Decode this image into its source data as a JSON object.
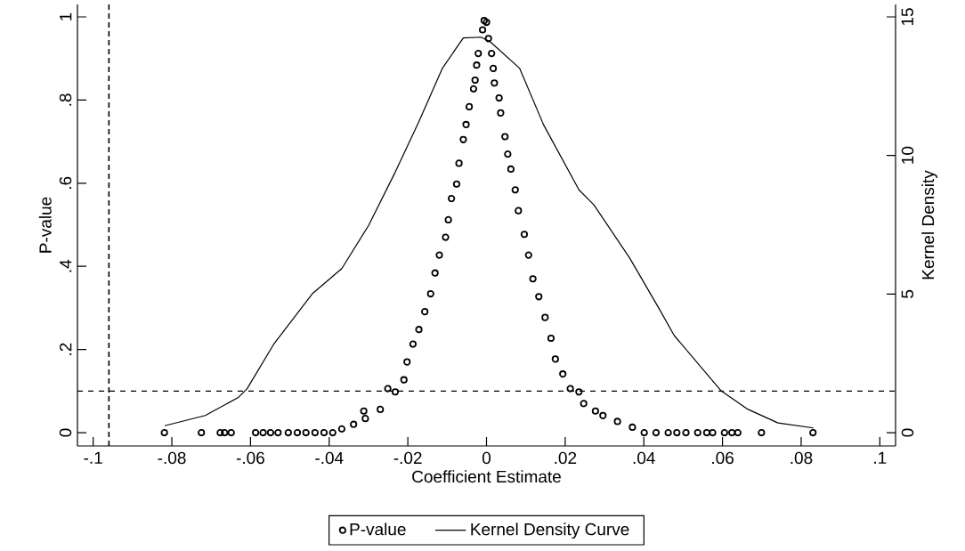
{
  "chart_data": {
    "type": "scatter",
    "xlabel": "Coefficient Estimate",
    "ylabel": "P-value",
    "y2label": "Kernel Density",
    "series": [
      {
        "name": "P-value",
        "marker": "circle",
        "color": "#000000",
        "x": [
          -0.0819,
          -0.0725,
          -0.0677,
          -0.0666,
          -0.0649,
          -0.0587,
          -0.0568,
          -0.0549,
          -0.053,
          -0.0504,
          -0.0481,
          -0.0459,
          -0.0436,
          -0.0413,
          -0.0391,
          -0.0368,
          -0.0338,
          -0.0308,
          -0.0312,
          -0.027,
          -0.0251,
          -0.0232,
          -0.021,
          -0.0202,
          -0.0187,
          -0.0172,
          -0.0157,
          -0.0142,
          -0.0131,
          -0.012,
          -0.0104,
          -0.0097,
          -0.0089,
          -0.0076,
          -0.007,
          -0.0059,
          -0.0052,
          -0.0044,
          -0.0033,
          -0.0029,
          -0.0025,
          -0.0021,
          -0.001,
          -0.0006,
          0.0,
          0.0005,
          0.0013,
          0.0017,
          0.002,
          0.0032,
          0.0036,
          0.0047,
          0.0054,
          0.0062,
          0.0073,
          0.0081,
          0.0096,
          0.0107,
          0.0118,
          0.0133,
          0.0149,
          0.0164,
          0.0175,
          0.0194,
          0.0213,
          0.0235,
          0.0247,
          0.0277,
          0.0296,
          0.0333,
          0.0371,
          0.0401,
          0.0431,
          0.0462,
          0.0484,
          0.0507,
          0.0537,
          0.056,
          0.0575,
          0.0605,
          0.0624,
          0.0639,
          0.0699,
          0.083
        ],
        "values": [
          0,
          0,
          0,
          0,
          0,
          0,
          0,
          0,
          0,
          0,
          0,
          0,
          0,
          0,
          0,
          0.009,
          0.02,
          0.034,
          0.052,
          0.056,
          0.106,
          0.098,
          0.127,
          0.17,
          0.213,
          0.248,
          0.291,
          0.334,
          0.384,
          0.427,
          0.47,
          0.512,
          0.563,
          0.598,
          0.648,
          0.705,
          0.741,
          0.784,
          0.827,
          0.848,
          0.884,
          0.912,
          0.969,
          0.991,
          0.987,
          0.948,
          0.912,
          0.876,
          0.841,
          0.805,
          0.769,
          0.712,
          0.67,
          0.634,
          0.584,
          0.534,
          0.477,
          0.427,
          0.37,
          0.327,
          0.277,
          0.227,
          0.177,
          0.141,
          0.106,
          0.098,
          0.07,
          0.052,
          0.041,
          0.027,
          0.013,
          0,
          0,
          0,
          0,
          0,
          0,
          0,
          0,
          0,
          0,
          0,
          0,
          0
        ]
      },
      {
        "name": "Kernel Density Curve",
        "type": "line",
        "axis": "y2",
        "marker": "none",
        "line_style": "solid",
        "color": "#000000",
        "x": [
          -0.0818,
          -0.0715,
          -0.0632,
          -0.0609,
          -0.0541,
          -0.0443,
          -0.0368,
          -0.03,
          -0.0232,
          -0.0172,
          -0.0112,
          -0.0059,
          -0.0014,
          0.0009,
          0.0084,
          0.0145,
          0.0235,
          0.0273,
          0.0364,
          0.0439,
          0.0477,
          0.0597,
          0.0665,
          0.0741,
          0.0831
        ],
        "values": [
          0.25,
          0.62,
          1.26,
          1.58,
          3.19,
          5.01,
          5.92,
          7.47,
          9.4,
          11.22,
          13.15,
          14.24,
          14.27,
          14.11,
          13.15,
          11.11,
          8.76,
          8.22,
          6.3,
          4.47,
          3.51,
          1.5,
          0.84,
          0.35,
          0.17
        ]
      }
    ],
    "xlim": [
      -0.104,
      0.104
    ],
    "ylim": [
      -0.032,
      1.03
    ],
    "y2lim": [
      -0.48,
      15.45
    ],
    "xticks": [
      {
        "value": -0.1,
        "label": "-.1"
      },
      {
        "value": -0.08,
        "label": "-.08"
      },
      {
        "value": -0.06,
        "label": "-.06"
      },
      {
        "value": -0.04,
        "label": "-.04"
      },
      {
        "value": -0.02,
        "label": "-.02"
      },
      0,
      {
        "value": 0.02,
        "label": ".02"
      },
      {
        "value": 0.04,
        "label": ".04"
      },
      {
        "value": 0.06,
        "label": ".06"
      },
      {
        "value": 0.08,
        "label": ".08"
      },
      {
        "value": 0.1,
        "label": ".1"
      }
    ],
    "yticks": [
      0,
      {
        "value": 0.2,
        "label": ".2"
      },
      {
        "value": 0.4,
        "label": ".4"
      },
      {
        "value": 0.6,
        "label": ".6"
      },
      {
        "value": 0.8,
        "label": ".8"
      },
      1
    ],
    "y2ticks": [
      0,
      5,
      10,
      15
    ],
    "ref_lines": [
      {
        "axis": "x",
        "value": -0.096,
        "line_style": "dashed"
      },
      {
        "axis": "y",
        "value": 0.1,
        "line_style": "dashed"
      }
    ],
    "legend": "bottom"
  }
}
